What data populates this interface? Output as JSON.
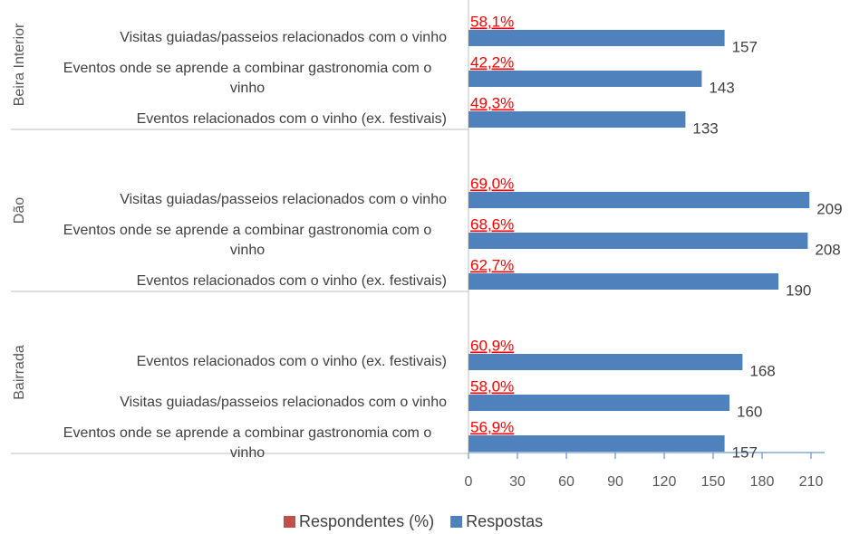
{
  "chart_data": {
    "type": "bar",
    "orientation": "horizontal",
    "groups": [
      {
        "name": "Beira Interior",
        "categories": [
          "Visitas guiadas/passeios relacionados com o vinho",
          "Eventos onde se aprende a combinar gastronomia com o vinho",
          "Eventos relacionados com o vinho (ex. festivais)"
        ]
      },
      {
        "name": "Dão",
        "categories": [
          "Visitas guiadas/passeios relacionados com o vinho",
          "Eventos onde se aprende a combinar gastronomia com o vinho",
          "Eventos relacionados com o vinho (ex. festivais)"
        ]
      },
      {
        "name": "Bairrada",
        "categories": [
          "Eventos relacionados com o vinho (ex. festivais)",
          "Visitas guiadas/passeios relacionados com o vinho",
          "Eventos onde se aprende a combinar gastronomia com o vinho"
        ]
      }
    ],
    "series": [
      {
        "name": "Respondentes (%)",
        "color": "#c0504d",
        "label_color": "#ff0000",
        "values": [
          58.1,
          42.2,
          49.3,
          69.0,
          68.6,
          62.7,
          60.9,
          58.0,
          56.9
        ],
        "value_labels": [
          "58,1%",
          "42,2%",
          "49,3%",
          "69,0%",
          "68,6%",
          "62,7%",
          "60,9%",
          "58,0%",
          "56,9%"
        ]
      },
      {
        "name": "Respostas",
        "color": "#4f81bd",
        "values": [
          157,
          143,
          133,
          209,
          208,
          190,
          168,
          160,
          157
        ]
      }
    ],
    "xlim": [
      0,
      220
    ],
    "xticks": [
      0,
      30,
      60,
      90,
      120,
      150,
      180,
      210
    ],
    "legend": "bottom"
  }
}
